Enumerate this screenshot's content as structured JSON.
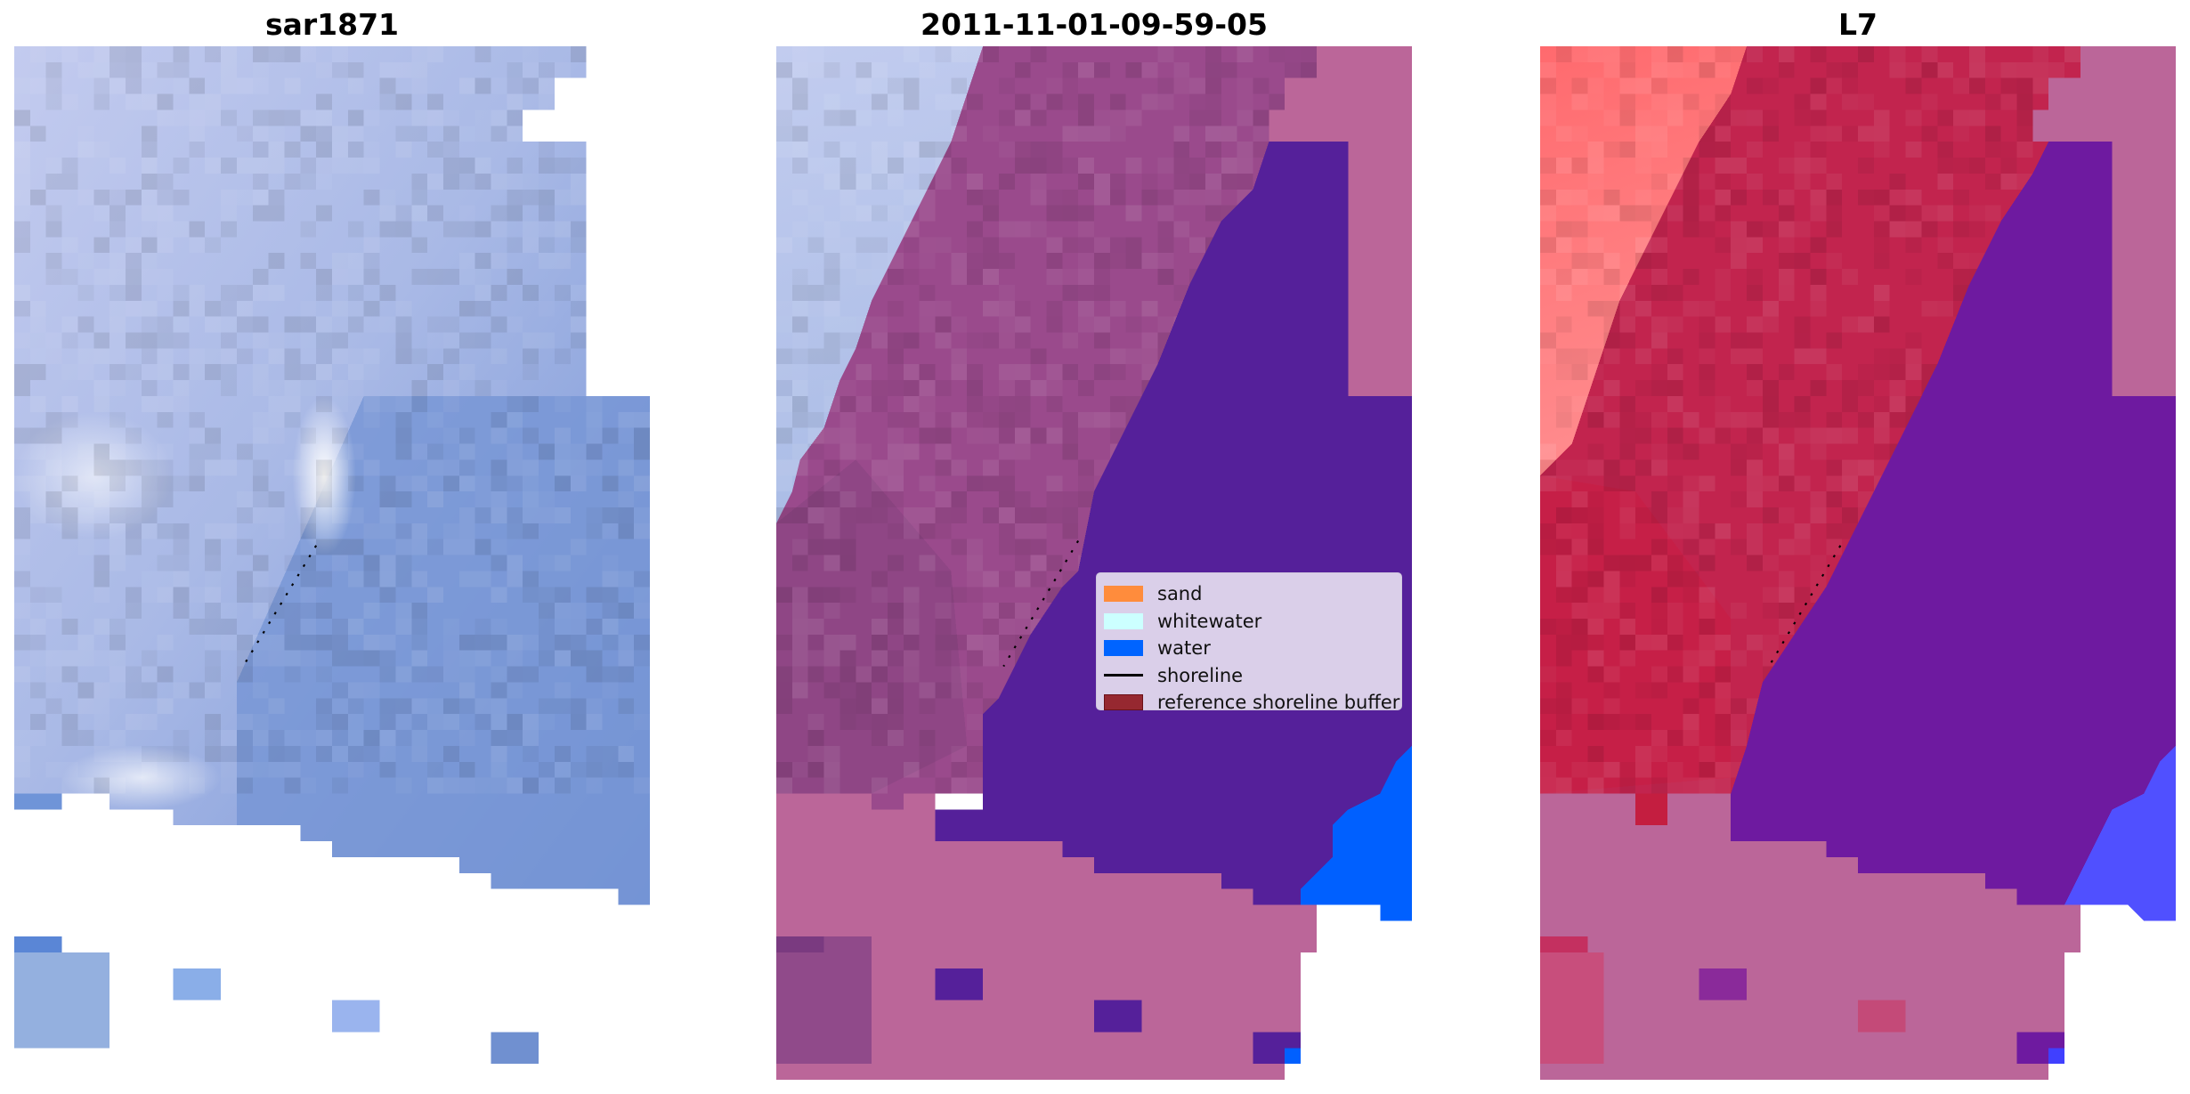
{
  "panels": [
    {
      "title": "sar1871"
    },
    {
      "title": "2011-11-01-09-59-05"
    },
    {
      "title": "L7"
    }
  ],
  "legend": {
    "items": [
      {
        "label": "sand",
        "color": "#ff8c3c",
        "kind": "patch"
      },
      {
        "label": "whitewater",
        "color": "#ccffff",
        "kind": "patch"
      },
      {
        "label": "water",
        "color": "#0064ff",
        "kind": "patch"
      },
      {
        "label": "shoreline",
        "color": "#000000",
        "kind": "line"
      },
      {
        "label": "reference shoreline buffer",
        "color": "#962830",
        "kind": "patch"
      }
    ]
  },
  "colors": {
    "classified_sand_overlay": "#9a4a8c",
    "classified_water_overlay": "#55209a",
    "buffer_overlay": "#bb6699",
    "water": "#0060ff"
  }
}
